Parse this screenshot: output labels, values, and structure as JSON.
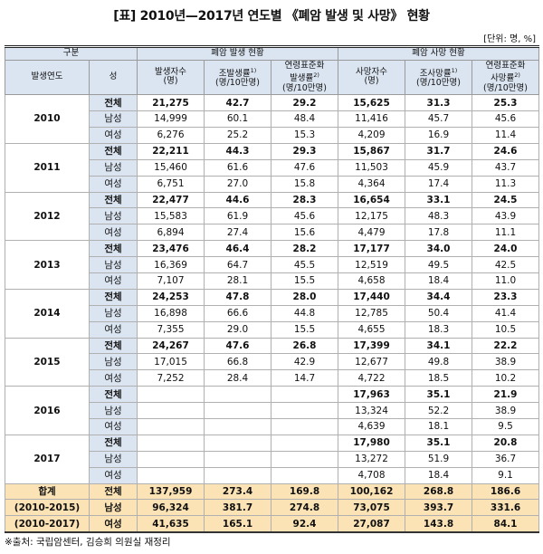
{
  "header": {
    "title": "[표] 2010년—2017년 연도별 《폐암 발생 및 사망》 현황",
    "unit": "[단위: 명, %]"
  },
  "table": {
    "group_header": {
      "label": "구분",
      "incidence": "폐암 발생 현황",
      "death": "폐암 사망 현황"
    },
    "columns": [
      {
        "lines": [
          {
            "text": "발생연도"
          }
        ]
      },
      {
        "lines": [
          {
            "text": "성"
          }
        ]
      },
      {
        "lines": [
          {
            "text": "발생자수"
          },
          {
            "text": "(명)"
          }
        ]
      },
      {
        "lines": [
          {
            "text": "조발생률",
            "sup": "1)"
          },
          {
            "text": "(명/10만명)"
          }
        ]
      },
      {
        "lines": [
          {
            "text": "연령표준화"
          },
          {
            "text": "발생률",
            "sup": "2)"
          },
          {
            "text": "(명/10만명)"
          }
        ]
      },
      {
        "lines": [
          {
            "text": "사망자수"
          },
          {
            "text": "(명)"
          }
        ]
      },
      {
        "lines": [
          {
            "text": "조사망률",
            "sup": "1)"
          },
          {
            "text": "(명/10만명)"
          }
        ]
      },
      {
        "lines": [
          {
            "text": "연령표준화"
          },
          {
            "text": "사망률",
            "sup": "2)"
          },
          {
            "text": "(명/10만명)"
          }
        ]
      }
    ],
    "groups": [
      {
        "year": "2010",
        "rows": [
          {
            "sex": "전체",
            "cells": [
              "21,275",
              "42.7",
              "29.2",
              "15,625",
              "31.3",
              "25.3"
            ]
          },
          {
            "sex": "남성",
            "cells": [
              "14,999",
              "60.1",
              "48.4",
              "11,416",
              "45.7",
              "45.6"
            ]
          },
          {
            "sex": "여성",
            "cells": [
              "6,276",
              "25.2",
              "15.3",
              "4,209",
              "16.9",
              "11.4"
            ]
          }
        ]
      },
      {
        "year": "2011",
        "rows": [
          {
            "sex": "전체",
            "cells": [
              "22,211",
              "44.3",
              "29.3",
              "15,867",
              "31.7",
              "24.6"
            ]
          },
          {
            "sex": "남성",
            "cells": [
              "15,460",
              "61.6",
              "47.6",
              "11,503",
              "45.9",
              "43.7"
            ]
          },
          {
            "sex": "여성",
            "cells": [
              "6,751",
              "27.0",
              "15.8",
              "4,364",
              "17.4",
              "11.3"
            ]
          }
        ]
      },
      {
        "year": "2012",
        "rows": [
          {
            "sex": "전체",
            "cells": [
              "22,477",
              "44.6",
              "28.3",
              "16,654",
              "33.1",
              "24.5"
            ]
          },
          {
            "sex": "남성",
            "cells": [
              "15,583",
              "61.9",
              "45.6",
              "12,175",
              "48.3",
              "43.9"
            ]
          },
          {
            "sex": "여성",
            "cells": [
              "6,894",
              "27.4",
              "15.6",
              "4,479",
              "17.8",
              "11.1"
            ]
          }
        ]
      },
      {
        "year": "2013",
        "rows": [
          {
            "sex": "전체",
            "cells": [
              "23,476",
              "46.4",
              "28.2",
              "17,177",
              "34.0",
              "24.0"
            ]
          },
          {
            "sex": "남성",
            "cells": [
              "16,369",
              "64.7",
              "45.5",
              "12,519",
              "49.5",
              "42.5"
            ]
          },
          {
            "sex": "여성",
            "cells": [
              "7,107",
              "28.1",
              "15.5",
              "4,658",
              "18.4",
              "11.0"
            ]
          }
        ]
      },
      {
        "year": "2014",
        "rows": [
          {
            "sex": "전체",
            "cells": [
              "24,253",
              "47.8",
              "28.0",
              "17,440",
              "34.4",
              "23.3"
            ]
          },
          {
            "sex": "남성",
            "cells": [
              "16,898",
              "66.6",
              "44.8",
              "12,785",
              "50.4",
              "41.4"
            ]
          },
          {
            "sex": "여성",
            "cells": [
              "7,355",
              "29.0",
              "15.5",
              "4,655",
              "18.3",
              "10.5"
            ]
          }
        ]
      },
      {
        "year": "2015",
        "rows": [
          {
            "sex": "전체",
            "cells": [
              "24,267",
              "47.6",
              "26.8",
              "17,399",
              "34.1",
              "22.2"
            ]
          },
          {
            "sex": "남성",
            "cells": [
              "17,015",
              "66.8",
              "42.9",
              "12,677",
              "49.8",
              "38.9"
            ]
          },
          {
            "sex": "여성",
            "cells": [
              "7,252",
              "28.4",
              "14.7",
              "4,722",
              "18.5",
              "10.2"
            ]
          }
        ]
      },
      {
        "year": "2016",
        "rows": [
          {
            "sex": "전체",
            "cells": [
              null,
              null,
              null,
              "17,963",
              "35.1",
              "21.9"
            ]
          },
          {
            "sex": "남성",
            "cells": [
              null,
              null,
              null,
              "13,324",
              "52.2",
              "38.9"
            ]
          },
          {
            "sex": "여성",
            "cells": [
              null,
              null,
              null,
              "4,639",
              "18.1",
              "9.5"
            ]
          }
        ]
      },
      {
        "year": "2017",
        "rows": [
          {
            "sex": "전체",
            "cells": [
              null,
              null,
              null,
              "17,980",
              "35.1",
              "20.8"
            ]
          },
          {
            "sex": "남성",
            "cells": [
              null,
              null,
              null,
              "13,272",
              "51.9",
              "36.7"
            ]
          },
          {
            "sex": "여성",
            "cells": [
              null,
              null,
              null,
              "4,708",
              "18.4",
              "9.1"
            ]
          }
        ]
      }
    ],
    "summary": [
      {
        "label": "합계",
        "sex": "전체",
        "cells": [
          "137,959",
          "273.4",
          "169.8",
          "100,162",
          "268.8",
          "186.6"
        ]
      },
      {
        "label": "(2010-2015)",
        "sex": "남성",
        "cells": [
          "96,324",
          "381.7",
          "274.8",
          "73,075",
          "393.7",
          "331.6"
        ]
      },
      {
        "label": "(2010-2017)",
        "sex": "여성",
        "cells": [
          "41,635",
          "165.1",
          "92.4",
          "27,087",
          "143.8",
          "84.1"
        ]
      }
    ]
  },
  "footer": {
    "source": "※출처: 국립암센터, 김승희 의원실 재정리"
  }
}
